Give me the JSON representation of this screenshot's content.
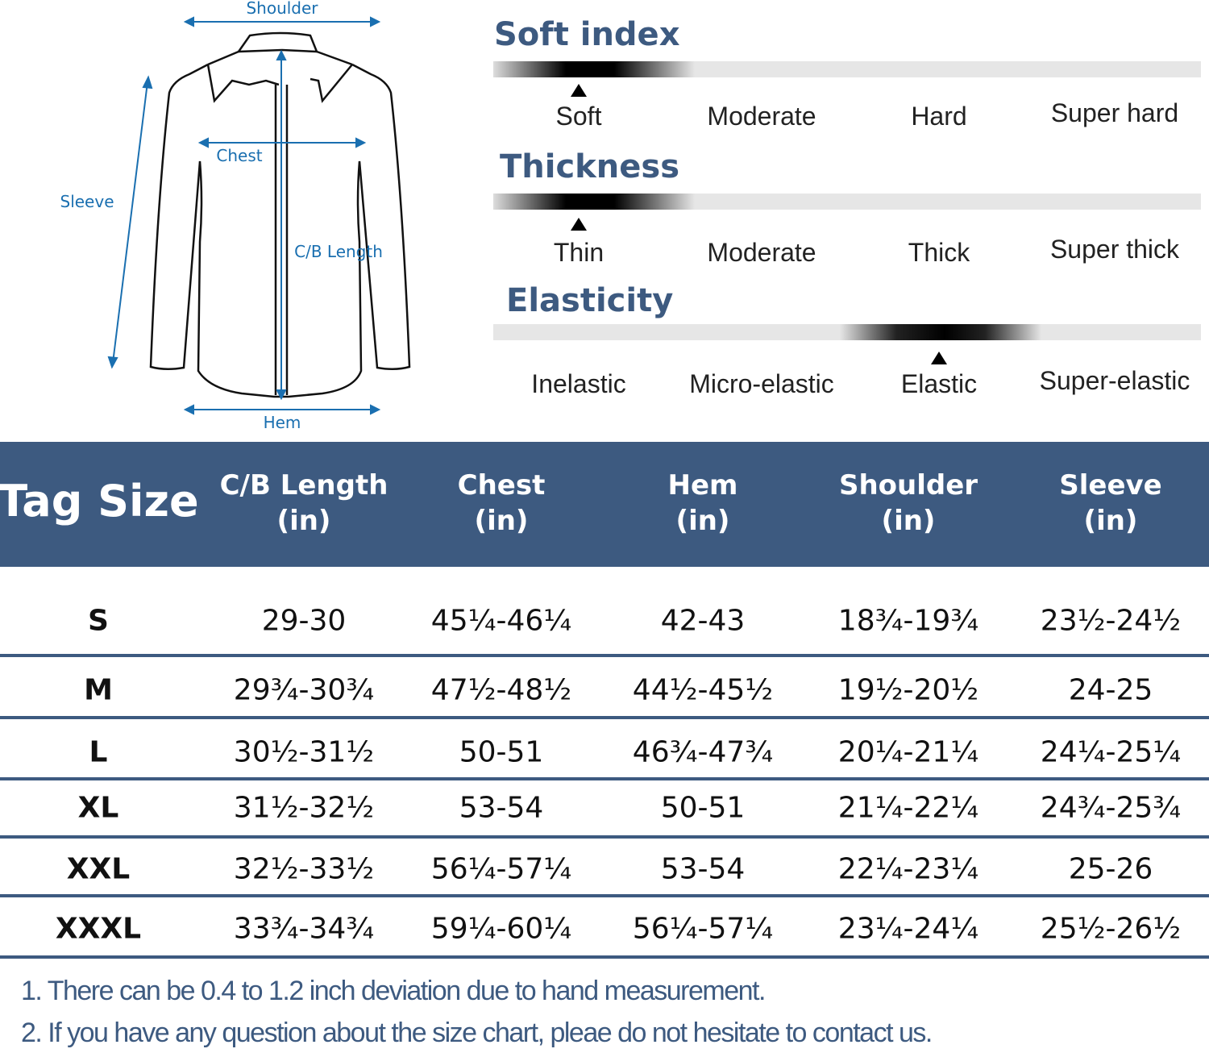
{
  "diagram": {
    "shoulder": "Shoulder",
    "chest": "Chest",
    "sleeve": "Sleeve",
    "cb_length": "C/B Length",
    "hem": "Hem"
  },
  "scales": [
    {
      "title": "Soft index",
      "levels": [
        "Soft",
        "Moderate",
        "Hard",
        "Super hard"
      ],
      "selected_index": 0
    },
    {
      "title": "Thickness",
      "levels": [
        "Thin",
        "Moderate",
        "Thick",
        "Super thick"
      ],
      "selected_index": 0
    },
    {
      "title": "Elasticity",
      "levels": [
        "Inelastic",
        "Micro-elastic",
        "Elastic",
        "Super-elastic"
      ],
      "selected_index": 2
    }
  ],
  "table": {
    "headers": [
      {
        "l1": "Tag Size",
        "l2": ""
      },
      {
        "l1": "C/B Length",
        "l2": "(in)"
      },
      {
        "l1": "Chest",
        "l2": "(in)"
      },
      {
        "l1": "Hem",
        "l2": "(in)"
      },
      {
        "l1": "Shoulder",
        "l2": "(in)"
      },
      {
        "l1": "Sleeve",
        "l2": "(in)"
      }
    ],
    "rows": [
      [
        "S",
        "29-30",
        "45¼-46¼",
        "42-43",
        "18¾-19¾",
        "23½-24½"
      ],
      [
        "M",
        "29¾-30¾",
        "47½-48½",
        "44½-45½",
        "19½-20½",
        "24-25"
      ],
      [
        "L",
        "30½-31½",
        "50-51",
        "46¾-47¾",
        "20¼-21¼",
        "24¼-25¼"
      ],
      [
        "XL",
        "31½-32½",
        "53-54",
        "50-51",
        "21¼-22¼",
        "24¾-25¾"
      ],
      [
        "XXL",
        "32½-33½",
        "56¼-57¼",
        "53-54",
        "22¼-23¼",
        "25-26"
      ],
      [
        "XXXL",
        "33¾-34¾",
        "59¼-60¼",
        "56¼-57¼",
        "23¼-24¼",
        "25½-26½"
      ]
    ]
  },
  "notes": [
    "1. There can be 0.4 to 1.2 inch deviation due to hand measurement.",
    "2. If you have any question about the size chart, pleae do not hesitate to contact us."
  ],
  "colors": {
    "accent": "#3d5a80",
    "diagram_blue": "#1a6fb0"
  }
}
